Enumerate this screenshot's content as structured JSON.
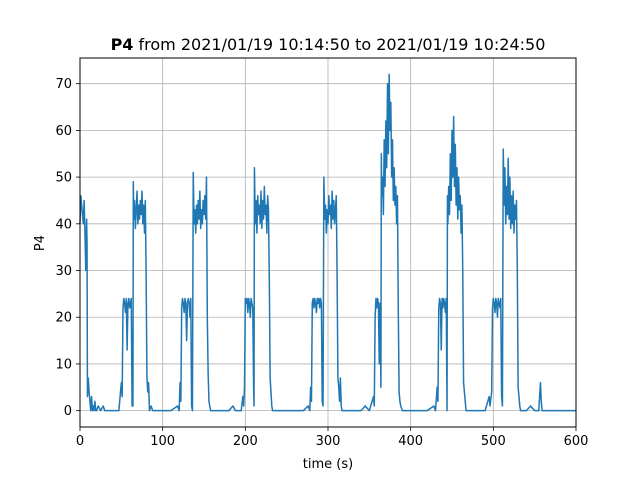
{
  "chart_data": {
    "type": "line",
    "title_bold": "P4",
    "title_rest": " from 2021/01/19 10:14:50 to 2021/01/19 10:24:50",
    "xlabel": "time (s)",
    "ylabel": "P4",
    "xlim": [
      0,
      600
    ],
    "ylim": [
      -3.5,
      75.5
    ],
    "grid": true,
    "xticks": [
      0,
      100,
      200,
      300,
      400,
      500,
      600
    ],
    "yticks": [
      0,
      10,
      20,
      30,
      40,
      50,
      60,
      70
    ],
    "series": [
      {
        "color": "#1f77b4",
        "points": [
          [
            0,
            40
          ],
          [
            1,
            46
          ],
          [
            2,
            44
          ],
          [
            3,
            42
          ],
          [
            4,
            40
          ],
          [
            5,
            45
          ],
          [
            6,
            38
          ],
          [
            7,
            30
          ],
          [
            8,
            41
          ],
          [
            8.5,
            36
          ],
          [
            9,
            3
          ],
          [
            10,
            7
          ],
          [
            11,
            4
          ],
          [
            12,
            2
          ],
          [
            13,
            0
          ],
          [
            14,
            3
          ],
          [
            15,
            0
          ],
          [
            16,
            1
          ],
          [
            17,
            0
          ],
          [
            18,
            2
          ],
          [
            19,
            0
          ],
          [
            20,
            0
          ],
          [
            22,
            1
          ],
          [
            25,
            0
          ],
          [
            28,
            1
          ],
          [
            30,
            0
          ],
          [
            40,
            0
          ],
          [
            47,
            0
          ],
          [
            48,
            2
          ],
          [
            50,
            6
          ],
          [
            51,
            3
          ],
          [
            52,
            22
          ],
          [
            53,
            24
          ],
          [
            54,
            23
          ],
          [
            55,
            21
          ],
          [
            56,
            24
          ],
          [
            57,
            13
          ],
          [
            58,
            23
          ],
          [
            59,
            24
          ],
          [
            60,
            22
          ],
          [
            61,
            23
          ],
          [
            62,
            24
          ],
          [
            63,
            1
          ],
          [
            64,
            1
          ],
          [
            64.5,
            49
          ],
          [
            65,
            41
          ],
          [
            66,
            45
          ],
          [
            67,
            39
          ],
          [
            68,
            43
          ],
          [
            69,
            47
          ],
          [
            70,
            40
          ],
          [
            71,
            44
          ],
          [
            72,
            41
          ],
          [
            73,
            45
          ],
          [
            74,
            42
          ],
          [
            75,
            47
          ],
          [
            76,
            40
          ],
          [
            77,
            44
          ],
          [
            78,
            38
          ],
          [
            79,
            45
          ],
          [
            80,
            29
          ],
          [
            81,
            7
          ],
          [
            82,
            4
          ],
          [
            83,
            6
          ],
          [
            84,
            0
          ],
          [
            86,
            1
          ],
          [
            88,
            0
          ],
          [
            90,
            0
          ],
          [
            95,
            0
          ],
          [
            100,
            0
          ],
          [
            110,
            0
          ],
          [
            118,
            1
          ],
          [
            120,
            0
          ],
          [
            121,
            6
          ],
          [
            122,
            2
          ],
          [
            123,
            22
          ],
          [
            124,
            24
          ],
          [
            125,
            23
          ],
          [
            126,
            21
          ],
          [
            127,
            24
          ],
          [
            128,
            23
          ],
          [
            129,
            15
          ],
          [
            130,
            23
          ],
          [
            131,
            24
          ],
          [
            132,
            23
          ],
          [
            133,
            20
          ],
          [
            134,
            24
          ],
          [
            135,
            1
          ],
          [
            136,
            0
          ],
          [
            137,
            51
          ],
          [
            138,
            40
          ],
          [
            139,
            43
          ],
          [
            140,
            38
          ],
          [
            141,
            44
          ],
          [
            142,
            40
          ],
          [
            143,
            45
          ],
          [
            144,
            41
          ],
          [
            145,
            47
          ],
          [
            146,
            39
          ],
          [
            147,
            43
          ],
          [
            148,
            40
          ],
          [
            149,
            45
          ],
          [
            150,
            42
          ],
          [
            151,
            46
          ],
          [
            152,
            41
          ],
          [
            153,
            50
          ],
          [
            154,
            20
          ],
          [
            155,
            8
          ],
          [
            156,
            2
          ],
          [
            157,
            1
          ],
          [
            158,
            0
          ],
          [
            160,
            0
          ],
          [
            170,
            0
          ],
          [
            180,
            0
          ],
          [
            185,
            1
          ],
          [
            188,
            0
          ],
          [
            195,
            0
          ],
          [
            197,
            3
          ],
          [
            198,
            1
          ],
          [
            199,
            5
          ],
          [
            200,
            24
          ],
          [
            201,
            23
          ],
          [
            202,
            24
          ],
          [
            203,
            21
          ],
          [
            204,
            24
          ],
          [
            205,
            23
          ],
          [
            206,
            20
          ],
          [
            207,
            24
          ],
          [
            208,
            23
          ],
          [
            209,
            22
          ],
          [
            210,
            5
          ],
          [
            210.5,
            1
          ],
          [
            211,
            52
          ],
          [
            212,
            40
          ],
          [
            213,
            45
          ],
          [
            214,
            38
          ],
          [
            215,
            46
          ],
          [
            216,
            42
          ],
          [
            217,
            44
          ],
          [
            218,
            40
          ],
          [
            219,
            47
          ],
          [
            220,
            39
          ],
          [
            221,
            45
          ],
          [
            222,
            41
          ],
          [
            223,
            48
          ],
          [
            224,
            42
          ],
          [
            225,
            44
          ],
          [
            226,
            38
          ],
          [
            227,
            46
          ],
          [
            228,
            43
          ],
          [
            229,
            28
          ],
          [
            230,
            7
          ],
          [
            231,
            4
          ],
          [
            232,
            1
          ],
          [
            233,
            0
          ],
          [
            240,
            0
          ],
          [
            250,
            0
          ],
          [
            260,
            0
          ],
          [
            270,
            0
          ],
          [
            276,
            1
          ],
          [
            278,
            0
          ],
          [
            279,
            5
          ],
          [
            280,
            2
          ],
          [
            281,
            23
          ],
          [
            282,
            24
          ],
          [
            283,
            22
          ],
          [
            284,
            24
          ],
          [
            285,
            23
          ],
          [
            286,
            21
          ],
          [
            287,
            24
          ],
          [
            288,
            23
          ],
          [
            289,
            24
          ],
          [
            290,
            22
          ],
          [
            291,
            24
          ],
          [
            292,
            23
          ],
          [
            293,
            2
          ],
          [
            294,
            1
          ],
          [
            295,
            50
          ],
          [
            296,
            41
          ],
          [
            297,
            44
          ],
          [
            298,
            38
          ],
          [
            299,
            43
          ],
          [
            300,
            40
          ],
          [
            301,
            46
          ],
          [
            302,
            42
          ],
          [
            303,
            44
          ],
          [
            304,
            39
          ],
          [
            305,
            47
          ],
          [
            306,
            41
          ],
          [
            307,
            45
          ],
          [
            308,
            40
          ],
          [
            309,
            43
          ],
          [
            310,
            46
          ],
          [
            311,
            29
          ],
          [
            312,
            7
          ],
          [
            313,
            5
          ],
          [
            314,
            2
          ],
          [
            315,
            7
          ],
          [
            316,
            1
          ],
          [
            317,
            0
          ],
          [
            320,
            0
          ],
          [
            330,
            0
          ],
          [
            340,
            0
          ],
          [
            345,
            1
          ],
          [
            350,
            0
          ],
          [
            355,
            3
          ],
          [
            356,
            1
          ],
          [
            357,
            20
          ],
          [
            358,
            24
          ],
          [
            359,
            22
          ],
          [
            360,
            24
          ],
          [
            361,
            23
          ],
          [
            362,
            10
          ],
          [
            363,
            23
          ],
          [
            364,
            5
          ],
          [
            364.5,
            55
          ],
          [
            365,
            46
          ],
          [
            366,
            50
          ],
          [
            367,
            42
          ],
          [
            368,
            58
          ],
          [
            369,
            48
          ],
          [
            370,
            62
          ],
          [
            371,
            52
          ],
          [
            372,
            70
          ],
          [
            373,
            55
          ],
          [
            374,
            72
          ],
          [
            375,
            60
          ],
          [
            376,
            66
          ],
          [
            377,
            50
          ],
          [
            378,
            58
          ],
          [
            379,
            45
          ],
          [
            380,
            52
          ],
          [
            381,
            44
          ],
          [
            382,
            48
          ],
          [
            383,
            40
          ],
          [
            384,
            46
          ],
          [
            385,
            22
          ],
          [
            386,
            4
          ],
          [
            387,
            2
          ],
          [
            388,
            1
          ],
          [
            390,
            0
          ],
          [
            400,
            0
          ],
          [
            410,
            0
          ],
          [
            420,
            0
          ],
          [
            428,
            1
          ],
          [
            430,
            0
          ],
          [
            432,
            5
          ],
          [
            433,
            2
          ],
          [
            434,
            22
          ],
          [
            435,
            24
          ],
          [
            436,
            23
          ],
          [
            437,
            13
          ],
          [
            438,
            24
          ],
          [
            439,
            22
          ],
          [
            440,
            24
          ],
          [
            441,
            23
          ],
          [
            442,
            21
          ],
          [
            443,
            24
          ],
          [
            444,
            0
          ],
          [
            444.5,
            46
          ],
          [
            445,
            40
          ],
          [
            446,
            48
          ],
          [
            447,
            42
          ],
          [
            448,
            55
          ],
          [
            449,
            45
          ],
          [
            450,
            60
          ],
          [
            451,
            50
          ],
          [
            452,
            63
          ],
          [
            453,
            48
          ],
          [
            454,
            57
          ],
          [
            455,
            44
          ],
          [
            456,
            52
          ],
          [
            457,
            41
          ],
          [
            458,
            50
          ],
          [
            459,
            43
          ],
          [
            460,
            46
          ],
          [
            461,
            38
          ],
          [
            462,
            44
          ],
          [
            463,
            30
          ],
          [
            464,
            6
          ],
          [
            465,
            4
          ],
          [
            466,
            2
          ],
          [
            467,
            0
          ],
          [
            470,
            0
          ],
          [
            480,
            0
          ],
          [
            490,
            0
          ],
          [
            495,
            3
          ],
          [
            496,
            1
          ],
          [
            498,
            4
          ],
          [
            499,
            22
          ],
          [
            500,
            24
          ],
          [
            501,
            23
          ],
          [
            502,
            21
          ],
          [
            503,
            24
          ],
          [
            504,
            23
          ],
          [
            505,
            20
          ],
          [
            506,
            24
          ],
          [
            507,
            23
          ],
          [
            508,
            22
          ],
          [
            509,
            24
          ],
          [
            510,
            3
          ],
          [
            511,
            1
          ],
          [
            512,
            56
          ],
          [
            513,
            44
          ],
          [
            514,
            52
          ],
          [
            515,
            40
          ],
          [
            516,
            48
          ],
          [
            517,
            42
          ],
          [
            518,
            54
          ],
          [
            519,
            41
          ],
          [
            520,
            50
          ],
          [
            521,
            39
          ],
          [
            522,
            46
          ],
          [
            523,
            40
          ],
          [
            524,
            47
          ],
          [
            525,
            38
          ],
          [
            526,
            44
          ],
          [
            527,
            41
          ],
          [
            528,
            45
          ],
          [
            529,
            30
          ],
          [
            530,
            5
          ],
          [
            531,
            3
          ],
          [
            532,
            1
          ],
          [
            533,
            0
          ],
          [
            540,
            0
          ],
          [
            545,
            1
          ],
          [
            550,
            0
          ],
          [
            555,
            0
          ],
          [
            557,
            6
          ],
          [
            558,
            2
          ],
          [
            559,
            0
          ],
          [
            560,
            0
          ],
          [
            570,
            0
          ],
          [
            580,
            0
          ],
          [
            590,
            0
          ],
          [
            600,
            0
          ]
        ]
      }
    ]
  }
}
